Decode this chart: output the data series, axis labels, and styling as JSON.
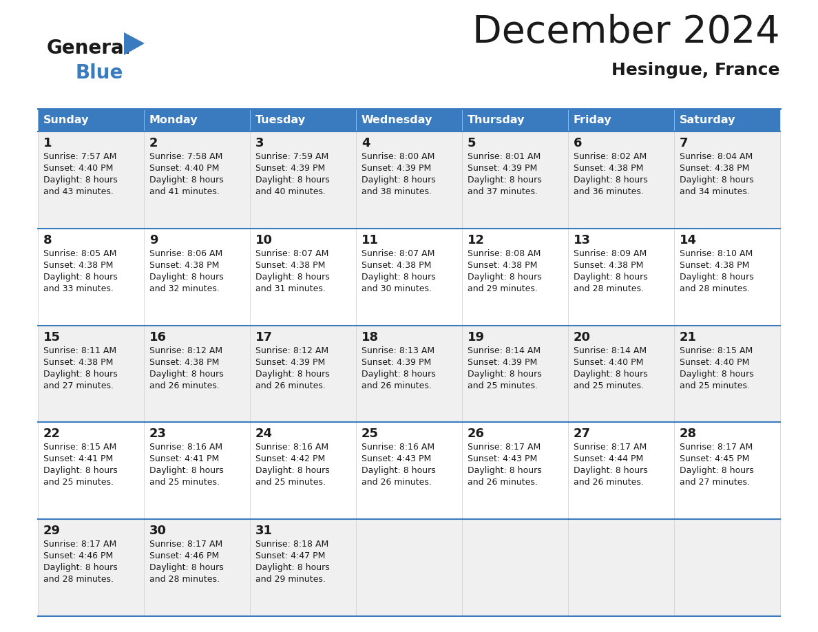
{
  "title": "December 2024",
  "subtitle": "Hesingue, France",
  "header_color": "#3a7bbf",
  "header_text_color": "#ffffff",
  "day_names": [
    "Sunday",
    "Monday",
    "Tuesday",
    "Wednesday",
    "Thursday",
    "Friday",
    "Saturday"
  ],
  "bg_color": "#ffffff",
  "cell_bg_even": "#f0f0f0",
  "cell_bg_odd": "#ffffff",
  "border_color": "#3a7bbf",
  "text_color": "#1a1a1a",
  "days": [
    {
      "day": 1,
      "col": 0,
      "row": 0,
      "sunrise": "7:57 AM",
      "sunset": "4:40 PM",
      "daylight": "8 hours and 43 minutes."
    },
    {
      "day": 2,
      "col": 1,
      "row": 0,
      "sunrise": "7:58 AM",
      "sunset": "4:40 PM",
      "daylight": "8 hours and 41 minutes."
    },
    {
      "day": 3,
      "col": 2,
      "row": 0,
      "sunrise": "7:59 AM",
      "sunset": "4:39 PM",
      "daylight": "8 hours and 40 minutes."
    },
    {
      "day": 4,
      "col": 3,
      "row": 0,
      "sunrise": "8:00 AM",
      "sunset": "4:39 PM",
      "daylight": "8 hours and 38 minutes."
    },
    {
      "day": 5,
      "col": 4,
      "row": 0,
      "sunrise": "8:01 AM",
      "sunset": "4:39 PM",
      "daylight": "8 hours and 37 minutes."
    },
    {
      "day": 6,
      "col": 5,
      "row": 0,
      "sunrise": "8:02 AM",
      "sunset": "4:38 PM",
      "daylight": "8 hours and 36 minutes."
    },
    {
      "day": 7,
      "col": 6,
      "row": 0,
      "sunrise": "8:04 AM",
      "sunset": "4:38 PM",
      "daylight": "8 hours and 34 minutes."
    },
    {
      "day": 8,
      "col": 0,
      "row": 1,
      "sunrise": "8:05 AM",
      "sunset": "4:38 PM",
      "daylight": "8 hours and 33 minutes."
    },
    {
      "day": 9,
      "col": 1,
      "row": 1,
      "sunrise": "8:06 AM",
      "sunset": "4:38 PM",
      "daylight": "8 hours and 32 minutes."
    },
    {
      "day": 10,
      "col": 2,
      "row": 1,
      "sunrise": "8:07 AM",
      "sunset": "4:38 PM",
      "daylight": "8 hours and 31 minutes."
    },
    {
      "day": 11,
      "col": 3,
      "row": 1,
      "sunrise": "8:07 AM",
      "sunset": "4:38 PM",
      "daylight": "8 hours and 30 minutes."
    },
    {
      "day": 12,
      "col": 4,
      "row": 1,
      "sunrise": "8:08 AM",
      "sunset": "4:38 PM",
      "daylight": "8 hours and 29 minutes."
    },
    {
      "day": 13,
      "col": 5,
      "row": 1,
      "sunrise": "8:09 AM",
      "sunset": "4:38 PM",
      "daylight": "8 hours and 28 minutes."
    },
    {
      "day": 14,
      "col": 6,
      "row": 1,
      "sunrise": "8:10 AM",
      "sunset": "4:38 PM",
      "daylight": "8 hours and 28 minutes."
    },
    {
      "day": 15,
      "col": 0,
      "row": 2,
      "sunrise": "8:11 AM",
      "sunset": "4:38 PM",
      "daylight": "8 hours and 27 minutes."
    },
    {
      "day": 16,
      "col": 1,
      "row": 2,
      "sunrise": "8:12 AM",
      "sunset": "4:38 PM",
      "daylight": "8 hours and 26 minutes."
    },
    {
      "day": 17,
      "col": 2,
      "row": 2,
      "sunrise": "8:12 AM",
      "sunset": "4:39 PM",
      "daylight": "8 hours and 26 minutes."
    },
    {
      "day": 18,
      "col": 3,
      "row": 2,
      "sunrise": "8:13 AM",
      "sunset": "4:39 PM",
      "daylight": "8 hours and 26 minutes."
    },
    {
      "day": 19,
      "col": 4,
      "row": 2,
      "sunrise": "8:14 AM",
      "sunset": "4:39 PM",
      "daylight": "8 hours and 25 minutes."
    },
    {
      "day": 20,
      "col": 5,
      "row": 2,
      "sunrise": "8:14 AM",
      "sunset": "4:40 PM",
      "daylight": "8 hours and 25 minutes."
    },
    {
      "day": 21,
      "col": 6,
      "row": 2,
      "sunrise": "8:15 AM",
      "sunset": "4:40 PM",
      "daylight": "8 hours and 25 minutes."
    },
    {
      "day": 22,
      "col": 0,
      "row": 3,
      "sunrise": "8:15 AM",
      "sunset": "4:41 PM",
      "daylight": "8 hours and 25 minutes."
    },
    {
      "day": 23,
      "col": 1,
      "row": 3,
      "sunrise": "8:16 AM",
      "sunset": "4:41 PM",
      "daylight": "8 hours and 25 minutes."
    },
    {
      "day": 24,
      "col": 2,
      "row": 3,
      "sunrise": "8:16 AM",
      "sunset": "4:42 PM",
      "daylight": "8 hours and 25 minutes."
    },
    {
      "day": 25,
      "col": 3,
      "row": 3,
      "sunrise": "8:16 AM",
      "sunset": "4:43 PM",
      "daylight": "8 hours and 26 minutes."
    },
    {
      "day": 26,
      "col": 4,
      "row": 3,
      "sunrise": "8:17 AM",
      "sunset": "4:43 PM",
      "daylight": "8 hours and 26 minutes."
    },
    {
      "day": 27,
      "col": 5,
      "row": 3,
      "sunrise": "8:17 AM",
      "sunset": "4:44 PM",
      "daylight": "8 hours and 26 minutes."
    },
    {
      "day": 28,
      "col": 6,
      "row": 3,
      "sunrise": "8:17 AM",
      "sunset": "4:45 PM",
      "daylight": "8 hours and 27 minutes."
    },
    {
      "day": 29,
      "col": 0,
      "row": 4,
      "sunrise": "8:17 AM",
      "sunset": "4:46 PM",
      "daylight": "8 hours and 28 minutes."
    },
    {
      "day": 30,
      "col": 1,
      "row": 4,
      "sunrise": "8:17 AM",
      "sunset": "4:46 PM",
      "daylight": "8 hours and 28 minutes."
    },
    {
      "day": 31,
      "col": 2,
      "row": 4,
      "sunrise": "8:18 AM",
      "sunset": "4:47 PM",
      "daylight": "8 hours and 29 minutes."
    }
  ]
}
